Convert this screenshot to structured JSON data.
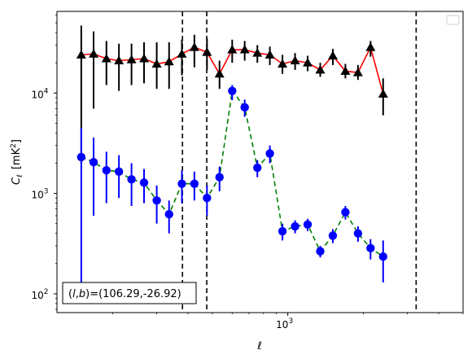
{
  "chart_data": {
    "type": "scatter",
    "title": "",
    "xlabel": "ℓ",
    "ylabel": "C_ℓ [mK²]",
    "ylabel_main": "C",
    "ylabel_sub": "ℓ",
    "ylabel_unit": "[mK",
    "ylabel_unit_sup": "2",
    "ylabel_unit_end": "]",
    "xscale": "log",
    "yscale": "log",
    "xlim": [
      120,
      5000
    ],
    "ylim": [
      65,
      65000
    ],
    "x_ticks": [
      {
        "value": 1000,
        "base": "10",
        "exp": "3"
      }
    ],
    "y_ticks": [
      {
        "value": 100,
        "base": "10",
        "exp": "2"
      },
      {
        "value": 1000,
        "base": "10",
        "exp": "3"
      },
      {
        "value": 10000,
        "base": "10",
        "exp": "4"
      }
    ],
    "legend": "top-right (empty)",
    "grid": false,
    "annotation": "(l,b)=(106.29,-26.92)",
    "annotation_parts": {
      "l": "l",
      "b": "b",
      "values": "=(106.29,-26.92)"
    },
    "vertical_lines": [
      380,
      475,
      3250
    ],
    "series": [
      {
        "marker": "triangle",
        "line_color": "#ff0000",
        "line_style": "solid",
        "marker_color": "#000000",
        "errorbar_color": "#000000",
        "points": [
          {
            "x": 150,
            "y": 24000,
            "lo": 2000,
            "hi": 47000
          },
          {
            "x": 168,
            "y": 24500,
            "lo": 7000,
            "hi": 41000
          },
          {
            "x": 189,
            "y": 22000,
            "lo": 12000,
            "hi": 33000
          },
          {
            "x": 212,
            "y": 21000,
            "lo": 10500,
            "hi": 31000
          },
          {
            "x": 238,
            "y": 21500,
            "lo": 12000,
            "hi": 31000
          },
          {
            "x": 267,
            "y": 22000,
            "lo": 12500,
            "hi": 32000
          },
          {
            "x": 300,
            "y": 19500,
            "lo": 11000,
            "hi": 32000
          },
          {
            "x": 336,
            "y": 20500,
            "lo": 11000,
            "hi": 32000
          },
          {
            "x": 378,
            "y": 24500,
            "lo": 15000,
            "hi": 34000
          },
          {
            "x": 424,
            "y": 28500,
            "lo": 18000,
            "hi": 38000
          },
          {
            "x": 476,
            "y": 25500,
            "lo": 17000,
            "hi": 35000
          },
          {
            "x": 534,
            "y": 15500,
            "lo": 11000,
            "hi": 21000
          },
          {
            "x": 600,
            "y": 27000,
            "lo": 20000,
            "hi": 34000
          },
          {
            "x": 673,
            "y": 27000,
            "lo": 21000,
            "hi": 33000
          },
          {
            "x": 756,
            "y": 25000,
            "lo": 20000,
            "hi": 30000
          },
          {
            "x": 848,
            "y": 24000,
            "lo": 19000,
            "hi": 29000
          },
          {
            "x": 952,
            "y": 19500,
            "lo": 15500,
            "hi": 24000
          },
          {
            "x": 1069,
            "y": 21000,
            "lo": 17000,
            "hi": 25000
          },
          {
            "x": 1200,
            "y": 20000,
            "lo": 16500,
            "hi": 23500
          },
          {
            "x": 1347,
            "y": 17000,
            "lo": 14500,
            "hi": 20000
          },
          {
            "x": 1512,
            "y": 23500,
            "lo": 19000,
            "hi": 27500
          },
          {
            "x": 1697,
            "y": 16500,
            "lo": 14000,
            "hi": 19500
          },
          {
            "x": 1905,
            "y": 16000,
            "lo": 13500,
            "hi": 19000
          },
          {
            "x": 2138,
            "y": 28500,
            "lo": 23000,
            "hi": 33000
          },
          {
            "x": 2400,
            "y": 9800,
            "lo": 6000,
            "hi": 14000
          }
        ]
      },
      {
        "marker": "circle",
        "line_color": "#008000",
        "line_style": "dashed",
        "marker_color": "#0000ff",
        "errorbar_color": "#0000ff",
        "points": [
          {
            "x": 150,
            "y": 2300,
            "lo": 110,
            "hi": 4500
          },
          {
            "x": 168,
            "y": 2050,
            "lo": 600,
            "hi": 3600
          },
          {
            "x": 189,
            "y": 1700,
            "lo": 800,
            "hi": 2600
          },
          {
            "x": 212,
            "y": 1650,
            "lo": 900,
            "hi": 2400
          },
          {
            "x": 238,
            "y": 1380,
            "lo": 750,
            "hi": 2000
          },
          {
            "x": 267,
            "y": 1280,
            "lo": 800,
            "hi": 1750
          },
          {
            "x": 300,
            "y": 850,
            "lo": 500,
            "hi": 1200
          },
          {
            "x": 336,
            "y": 620,
            "lo": 400,
            "hi": 850
          },
          {
            "x": 378,
            "y": 1250,
            "lo": 800,
            "hi": 1700
          },
          {
            "x": 424,
            "y": 1250,
            "lo": 850,
            "hi": 1650
          },
          {
            "x": 476,
            "y": 900,
            "lo": 600,
            "hi": 1200
          },
          {
            "x": 534,
            "y": 1450,
            "lo": 1050,
            "hi": 1850
          },
          {
            "x": 600,
            "y": 10500,
            "lo": 8500,
            "hi": 12000
          },
          {
            "x": 673,
            "y": 7200,
            "lo": 5800,
            "hi": 8600
          },
          {
            "x": 756,
            "y": 1800,
            "lo": 1450,
            "hi": 2150
          },
          {
            "x": 848,
            "y": 2500,
            "lo": 2000,
            "hi": 3000
          },
          {
            "x": 952,
            "y": 420,
            "lo": 340,
            "hi": 500
          },
          {
            "x": 1069,
            "y": 470,
            "lo": 400,
            "hi": 540
          },
          {
            "x": 1200,
            "y": 490,
            "lo": 420,
            "hi": 560
          },
          {
            "x": 1347,
            "y": 265,
            "lo": 230,
            "hi": 300
          },
          {
            "x": 1512,
            "y": 380,
            "lo": 320,
            "hi": 440
          },
          {
            "x": 1697,
            "y": 650,
            "lo": 550,
            "hi": 750
          },
          {
            "x": 1905,
            "y": 400,
            "lo": 330,
            "hi": 470
          },
          {
            "x": 2138,
            "y": 285,
            "lo": 220,
            "hi": 350
          },
          {
            "x": 2400,
            "y": 235,
            "lo": 130,
            "hi": 340
          }
        ]
      }
    ]
  }
}
